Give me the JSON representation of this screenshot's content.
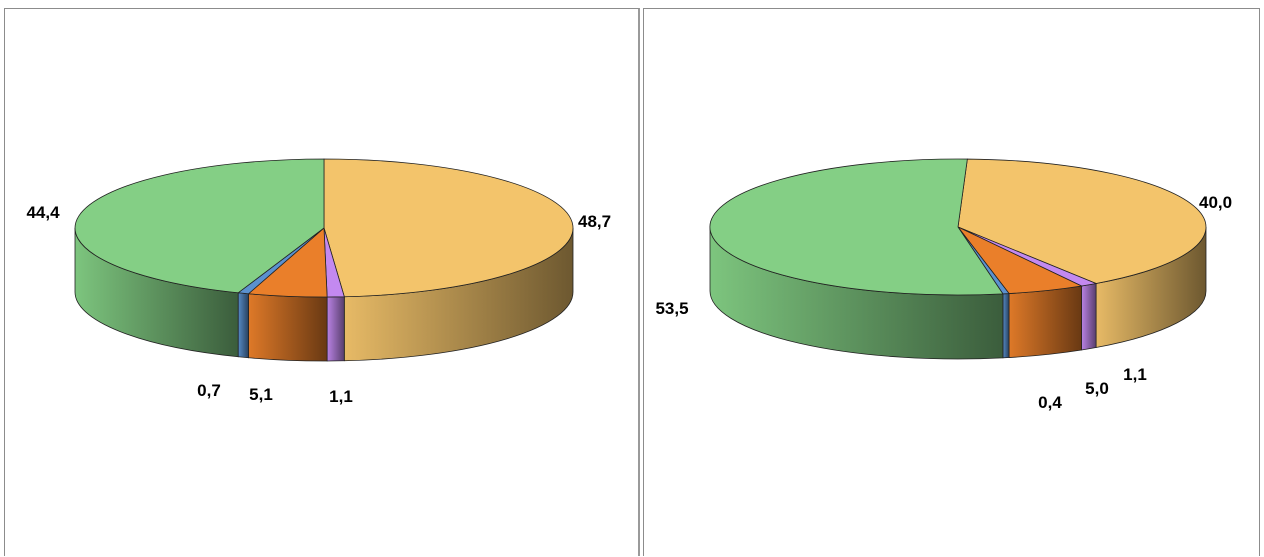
{
  "chart_data": [
    {
      "type": "pie",
      "title": "",
      "slices": [
        {
          "value": 48.7,
          "label": "48,7",
          "color": "#f3c46b"
        },
        {
          "value": 1.1,
          "label": "1,1",
          "color": "#c389f0"
        },
        {
          "value": 5.1,
          "label": "5,1",
          "color": "#ea7f2a"
        },
        {
          "value": 0.7,
          "label": "0,7",
          "color": "#5b91cf"
        },
        {
          "value": 44.4,
          "label": "44,4",
          "color": "#84cf85"
        }
      ]
    },
    {
      "type": "pie",
      "title": "",
      "slices": [
        {
          "value": 40.0,
          "label": "40,0",
          "color": "#f3c46b"
        },
        {
          "value": 1.1,
          "label": "1,1",
          "color": "#c389f0"
        },
        {
          "value": 5.0,
          "label": "5,0",
          "color": "#ea7f2a"
        },
        {
          "value": 0.4,
          "label": "0,4",
          "color": "#5b91cf"
        },
        {
          "value": 53.5,
          "label": "53,5",
          "color": "#84cf85"
        }
      ]
    }
  ]
}
